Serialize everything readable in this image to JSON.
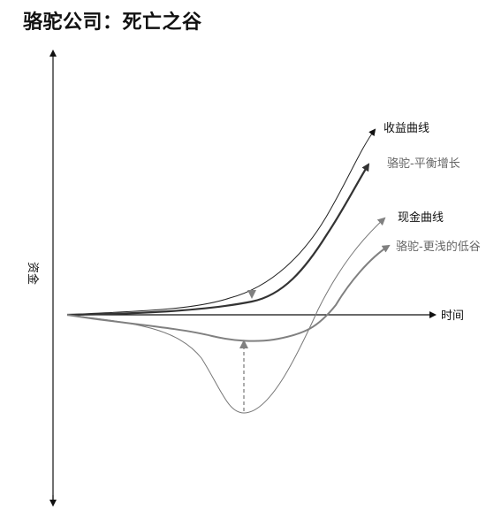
{
  "title": "骆驼公司：死亡之谷",
  "axes": {
    "y_label": "资金",
    "x_label": "时间"
  },
  "curves": {
    "revenue": "收益曲线",
    "camel_growth": "骆驼-平衡增长",
    "cash": "现金曲线",
    "camel_shallow": "骆驼-更浅的低谷"
  },
  "colors": {
    "dark": "#111111",
    "mid": "#333333",
    "gray": "#808080"
  }
}
